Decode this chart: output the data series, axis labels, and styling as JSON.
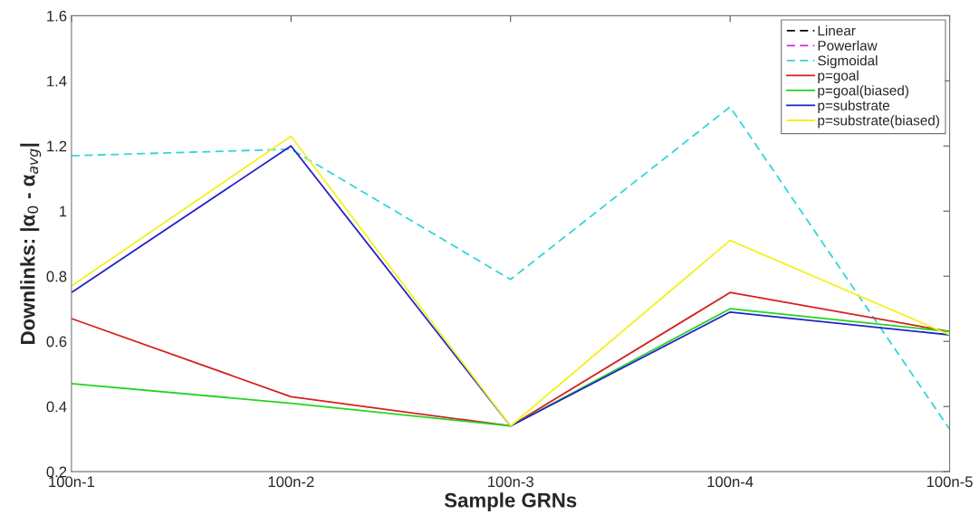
{
  "chart_data": {
    "type": "line",
    "xlabel": "Sample GRNs",
    "ylabel": "Downlinks: |α$_{0}$ - α$_{avg}$|",
    "categories": [
      "100n-1",
      "100n-2",
      "100n-3",
      "100n-4",
      "100n-5"
    ],
    "ylim": [
      0.2,
      1.6
    ],
    "yticks": [
      0.2,
      0.4,
      0.6,
      0.8,
      1,
      1.2,
      1.4,
      1.6
    ],
    "legend": "top right",
    "grid": false,
    "series": [
      {
        "name": "Linear",
        "color": "#000000",
        "line_style": "dashed",
        "values": [
          null,
          null,
          null,
          null,
          null
        ]
      },
      {
        "name": "Powerlaw",
        "color": "#dd22dd",
        "line_style": "dashed",
        "values": [
          null,
          null,
          null,
          null,
          null
        ]
      },
      {
        "name": "Sigmoidal",
        "color": "#33d6d6",
        "line_style": "dashed",
        "values": [
          1.17,
          1.19,
          0.79,
          1.32,
          0.33
        ]
      },
      {
        "name": "p=goal",
        "color": "#d42020",
        "line_style": "solid",
        "values": [
          0.67,
          0.43,
          0.34,
          0.75,
          0.63
        ]
      },
      {
        "name": "p=goal(biased)",
        "color": "#22d422",
        "line_style": "solid",
        "values": [
          0.47,
          0.41,
          0.34,
          0.7,
          0.63
        ]
      },
      {
        "name": "p=substrate",
        "color": "#2222c8",
        "line_style": "solid",
        "values": [
          0.75,
          1.2,
          0.34,
          0.69,
          0.62
        ]
      },
      {
        "name": "p=substrate(biased)",
        "color": "#f2f222",
        "line_style": "solid",
        "values": [
          0.77,
          1.23,
          0.34,
          0.91,
          0.62
        ]
      }
    ]
  }
}
